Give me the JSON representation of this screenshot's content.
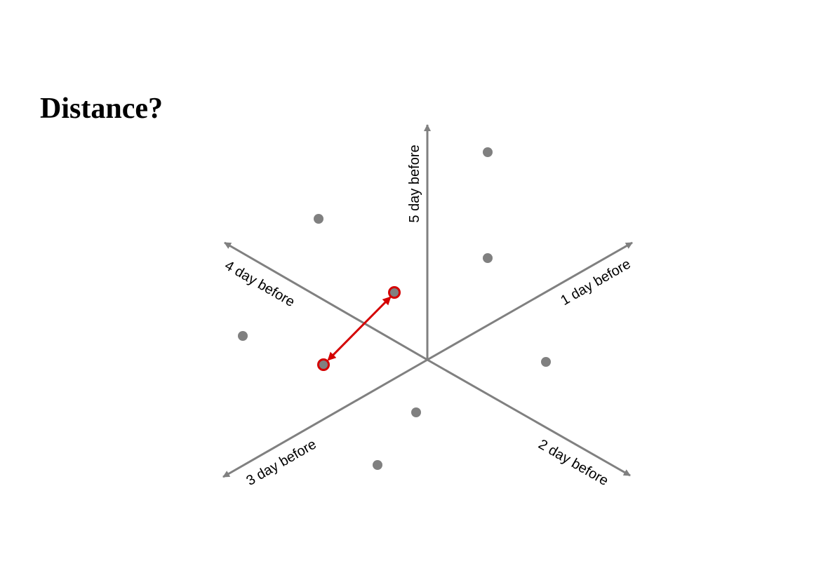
{
  "slide": {
    "title": "Distance?"
  },
  "axes": [
    {
      "label": "1 day before"
    },
    {
      "label": "2 day before"
    },
    {
      "label": "3 day before"
    },
    {
      "label": "4 day before"
    },
    {
      "label": "5 day before"
    }
  ],
  "colors": {
    "axis": "#808080",
    "point": "#808080",
    "highlight": "#d40000"
  },
  "points_count": 9,
  "highlighted_pair_count": 2
}
